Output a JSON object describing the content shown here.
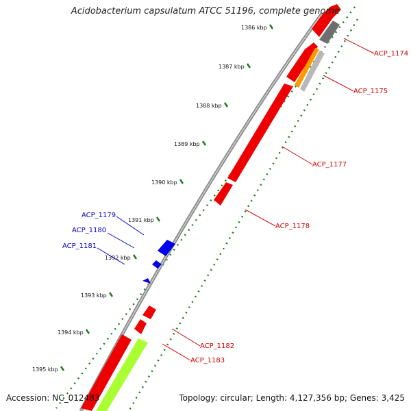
{
  "title": "Acidobacterium capsulatum ATCC 51196, complete genome",
  "footer": {
    "accession": "Accession: NC_012483",
    "topology": "Topology: circular; Length: 4,127,356 bp; Genes: 3,425"
  },
  "colors": {
    "backbone": "#8a8a8a",
    "tick": "#1a7a1a",
    "forward_gene": "#ff0000",
    "reverse_gene": "#0000ff",
    "label_red": "#cc0000",
    "label_blue": "#0000cc",
    "gray_feature": "#707070",
    "orange_feature": "#ff9900",
    "light_gray_feature": "#b8b8b8",
    "lime_feature": "#aaff33"
  },
  "ticks": [
    "1386 kbp",
    "1387 kbp",
    "1388 kbp",
    "1389 kbp",
    "1390 kbp",
    "1391 kbp",
    "1392 kbp",
    "1393 kbp",
    "1394 kbp",
    "1395 kbp"
  ],
  "genes": [
    {
      "name": "ACP_1174",
      "color": "red"
    },
    {
      "name": "ACP_1175",
      "color": "red"
    },
    {
      "name": "ACP_1177",
      "color": "red"
    },
    {
      "name": "ACP_1178",
      "color": "red"
    },
    {
      "name": "ACP_1179",
      "color": "blue"
    },
    {
      "name": "ACP_1180",
      "color": "blue"
    },
    {
      "name": "ACP_1181",
      "color": "blue"
    },
    {
      "name": "ACP_1182",
      "color": "red"
    },
    {
      "name": "ACP_1183",
      "color": "red"
    }
  ]
}
